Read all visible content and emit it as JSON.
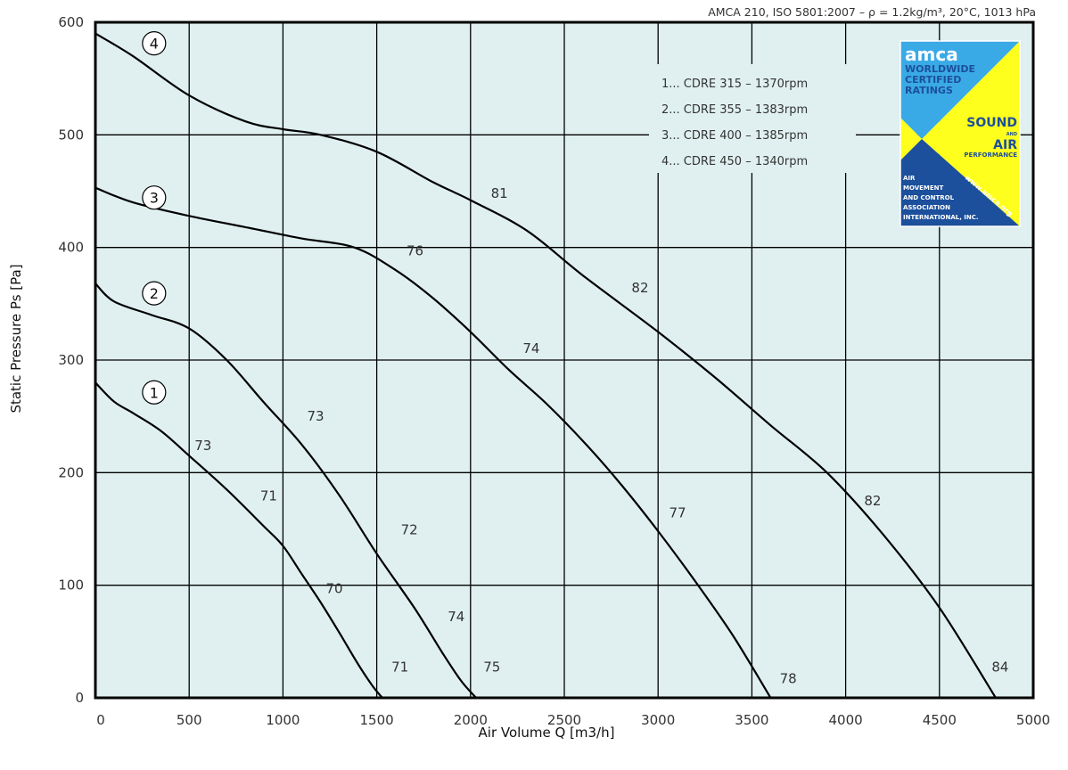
{
  "note": "AMCA 210, ISO 5801:2007 – ρ = 1.2kg/m³, 20°C, 1013 hPa",
  "legend": [
    "1... CDRE 315 – 1370rpm",
    "2... CDRE 355 – 1383rpm",
    "3... CDRE 400 – 1385rpm",
    "4... CDRE 450 – 1340rpm"
  ],
  "logo": {
    "line1": "amca",
    "line2": "WORLDWIDE",
    "line3": "CERTIFIED",
    "line4": "RATINGS",
    "sound": "SOUND",
    "and": "AND",
    "air": "AIR",
    "performance": "PERFORMANCE",
    "org1": "AIR",
    "org2": "MOVEMENT",
    "org3": "AND CONTROL",
    "org4": "ASSOCIATION",
    "org5": "INTERNATIONAL, INC.",
    "url": "www.amca.org",
    "colors": {
      "blue": "#3aaae6",
      "yellow": "#ffff1e",
      "navy": "#1c4f9c"
    }
  },
  "colors": {
    "plot_bg": "#e0f0f0",
    "grid": "#000000",
    "curve": "#000000"
  },
  "chart_data": {
    "type": "line",
    "xlabel": "Air Volume Q [m3/h]",
    "ylabel": "Static Pressure Ps [Pa]",
    "xlim": [
      0,
      5000
    ],
    "ylim": [
      0,
      600
    ],
    "xticks": [
      "0",
      "500",
      "1000",
      "1500",
      "2000",
      "2500",
      "3000",
      "3500",
      "4000",
      "4500",
      "5000"
    ],
    "yticks": [
      "0",
      "100",
      "200",
      "300",
      "400",
      "500",
      "600"
    ],
    "grid": true,
    "series": [
      {
        "name": "1",
        "x": [
          0,
          100,
          200,
          350,
          500,
          700,
          900,
          1000,
          1100,
          1200,
          1300,
          1400,
          1480,
          1530
        ],
        "y": [
          280,
          263,
          253,
          237,
          215,
          185,
          152,
          135,
          110,
          85,
          58,
          30,
          10,
          0
        ],
        "sound_labels": [
          {
            "x": 500,
            "y": 217,
            "text": "73"
          },
          {
            "x": 850,
            "y": 172,
            "text": "71"
          },
          {
            "x": 1200,
            "y": 90,
            "text": "70"
          },
          {
            "x": 1550,
            "y": 20,
            "text": "71"
          }
        ]
      },
      {
        "name": "2",
        "x": [
          0,
          100,
          300,
          500,
          700,
          900,
          1100,
          1300,
          1500,
          1700,
          1850,
          1950,
          2030
        ],
        "y": [
          368,
          352,
          340,
          328,
          300,
          262,
          225,
          180,
          128,
          80,
          40,
          15,
          0
        ],
        "sound_labels": [
          {
            "x": 1100,
            "y": 243,
            "text": "73"
          },
          {
            "x": 1600,
            "y": 142,
            "text": "72"
          },
          {
            "x": 1850,
            "y": 65,
            "text": "74"
          },
          {
            "x": 2040,
            "y": 20,
            "text": "75"
          }
        ]
      },
      {
        "name": "3",
        "x": [
          0,
          200,
          500,
          800,
          1100,
          1380,
          1600,
          1800,
          2000,
          2200,
          2400,
          2600,
          2800,
          3000,
          3200,
          3400,
          3600
        ],
        "y": [
          453,
          440,
          428,
          418,
          408,
          400,
          380,
          355,
          325,
          292,
          262,
          228,
          190,
          148,
          103,
          55,
          0
        ],
        "sound_labels": [
          {
            "x": 1630,
            "y": 390,
            "text": "76"
          },
          {
            "x": 2250,
            "y": 303,
            "text": "74"
          },
          {
            "x": 3030,
            "y": 157,
            "text": "77"
          },
          {
            "x": 3620,
            "y": 10,
            "text": "78"
          }
        ]
      },
      {
        "name": "4",
        "x": [
          0,
          200,
          500,
          800,
          1000,
          1200,
          1500,
          1800,
          2000,
          2300,
          2600,
          3000,
          3300,
          3600,
          3900,
          4200,
          4500,
          4800
        ],
        "y": [
          590,
          570,
          535,
          512,
          505,
          500,
          485,
          458,
          442,
          415,
          375,
          325,
          285,
          242,
          200,
          145,
          80,
          0
        ],
        "sound_labels": [
          {
            "x": 2080,
            "y": 441,
            "text": "81"
          },
          {
            "x": 2830,
            "y": 357,
            "text": "82"
          },
          {
            "x": 4070,
            "y": 168,
            "text": "82"
          },
          {
            "x": 4750,
            "y": 20,
            "text": "84"
          }
        ]
      }
    ]
  }
}
